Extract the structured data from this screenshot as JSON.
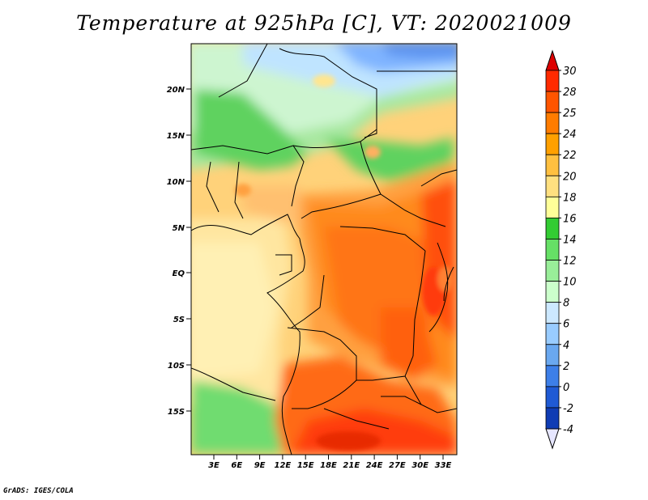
{
  "title": "Temperature at 925hPa [C], VT: 2020021009",
  "credit": "GrADS: IGES/COLA",
  "map": {
    "lat_ticks": [
      "20N",
      "15N",
      "10N",
      "5N",
      "EQ",
      "5S",
      "10S",
      "15S"
    ],
    "lon_ticks": [
      "3E",
      "6E",
      "9E",
      "12E",
      "15E",
      "18E",
      "21E",
      "24E",
      "27E",
      "30E",
      "33E"
    ]
  },
  "colorbar": {
    "levels": [
      "30",
      "28",
      "25",
      "24",
      "22",
      "20",
      "18",
      "16",
      "14",
      "12",
      "10",
      "8",
      "6",
      "4",
      "2",
      "0",
      "-2",
      "-4"
    ],
    "colors": [
      "#ff2a00",
      "#ff5500",
      "#ff7c00",
      "#ffa000",
      "#ffc040",
      "#ffe080",
      "#ffff99",
      "#33cc33",
      "#66e066",
      "#99ee99",
      "#ccffcc",
      "#cce8ff",
      "#99ccff",
      "#6aa8f0",
      "#3d7fe8",
      "#1f5ad4",
      "#0f3cb4",
      "#001a82"
    ],
    "top_arrow_color": "#dd0000",
    "bottom_arrow_color": "#e6e6ff"
  }
}
